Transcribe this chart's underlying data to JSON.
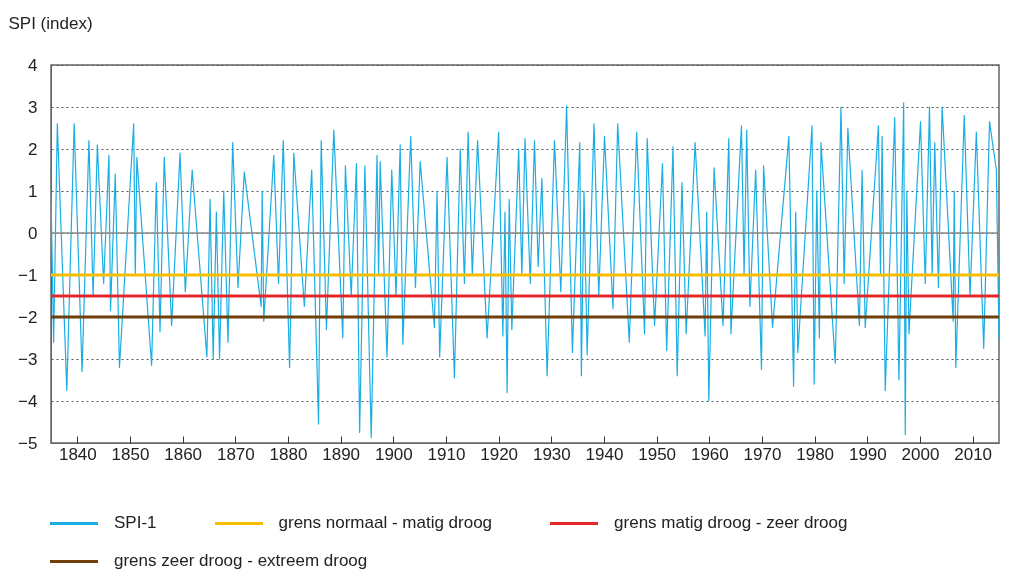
{
  "chart_data": {
    "type": "line",
    "ylabel": "SPI (index)",
    "xlim": [
      1835,
      2015
    ],
    "ylim": [
      -5,
      4
    ],
    "xticks": [
      1840,
      1850,
      1860,
      1870,
      1880,
      1890,
      1900,
      1910,
      1920,
      1930,
      1940,
      1950,
      1960,
      1970,
      1980,
      1990,
      2000,
      2010
    ],
    "yticks": [
      -5,
      -4,
      -3,
      -2,
      -1,
      0,
      1,
      2,
      3,
      4
    ],
    "grid": "y",
    "legend": "bottom",
    "marker": "none",
    "series": [
      {
        "name": "SPI-1",
        "color": "#1aaee5",
        "x": [
          1835.0,
          1835.5,
          1836.2,
          1838.0,
          1839.4,
          1840.9,
          1842.2,
          1843.0,
          1843.8,
          1845.0,
          1846.0,
          1846.3,
          1847.2,
          1848.0,
          1850.7,
          1851.0,
          1851.3,
          1854.1,
          1855.0,
          1855.7,
          1856.5,
          1857.9,
          1859.5,
          1860.5,
          1861.8,
          1864.6,
          1865.2,
          1865.8,
          1866.4,
          1867.0,
          1867.8,
          1868.6,
          1869.5,
          1870.5,
          1871.7,
          1874.9,
          1875.1,
          1875.4,
          1877.3,
          1878.2,
          1879.1,
          1880.3,
          1881.1,
          1883.1,
          1884.5,
          1885.8,
          1886.3,
          1887.3,
          1888.7,
          1890.4,
          1890.9,
          1892.0,
          1893.0,
          1893.6,
          1894.6,
          1895.8,
          1896.9,
          1897.2,
          1897.5,
          1898.8,
          1899.7,
          1900.5,
          1901.3,
          1901.8,
          1903.3,
          1904.2,
          1905.1,
          1907.8,
          1908.3,
          1908.8,
          1910.2,
          1911.6,
          1912.7,
          1913.5,
          1914.2,
          1915.0,
          1916.0,
          1917.8,
          1920.0,
          1920.8,
          1921.2,
          1921.6,
          1922.0,
          1922.5,
          1923.8,
          1924.4,
          1925.0,
          1926.0,
          1926.8,
          1927.5,
          1928.2,
          1929.2,
          1930.6,
          1931.8,
          1932.9,
          1934.0,
          1935.4,
          1935.7,
          1936.2,
          1936.8,
          1938.1,
          1939.0,
          1940.1,
          1941.7,
          1942.6,
          1944.8,
          1946.2,
          1947.7,
          1948.2,
          1949.6,
          1951.1,
          1951.9,
          1953.1,
          1953.9,
          1954.8,
          1955.6,
          1957.3,
          1959.2,
          1959.5,
          1959.9,
          1960.9,
          1962.6,
          1963.7,
          1964.1,
          1966.1,
          1966.6,
          1967.1,
          1967.7,
          1968.8,
          1969.9,
          1970.3,
          1972.0,
          1975.1,
          1976.0,
          1976.4,
          1976.8,
          1979.5,
          1979.9,
          1980.4,
          1980.9,
          1981.2,
          1983.9,
          1985.0,
          1985.6,
          1986.3,
          1988.5,
          1989.0,
          1989.6,
          1992.1,
          1992.5,
          1992.8,
          1993.4,
          1995.2,
          1996.0,
          1996.9,
          1997.2,
          1997.5,
          1997.9,
          2000.1,
          2001.0,
          2001.8,
          2002.3,
          2002.8,
          2003.5,
          2004.2,
          2006.3,
          2006.5,
          2006.8,
          2008.4,
          2009.5,
          2010.7,
          2012.1,
          2013.2,
          2014.5,
          2015.0
        ],
        "values": [
          0.9,
          -2.6,
          2.6,
          -3.75,
          2.6,
          -3.3,
          2.2,
          -1.5,
          2.1,
          -1.2,
          1.85,
          -1.85,
          1.4,
          -3.2,
          2.6,
          -1.0,
          1.8,
          -3.15,
          1.2,
          -2.35,
          1.8,
          -2.2,
          1.9,
          -1.4,
          1.5,
          -2.95,
          0.8,
          -3.0,
          0.5,
          -3.0,
          1.0,
          -2.6,
          2.15,
          -1.3,
          1.45,
          -1.75,
          1.0,
          -2.1,
          1.85,
          -1.2,
          2.2,
          -3.2,
          1.9,
          -1.75,
          1.5,
          -4.55,
          2.2,
          -2.3,
          2.45,
          -2.5,
          1.6,
          -1.5,
          1.65,
          -4.75,
          1.6,
          -4.87,
          1.85,
          -1.0,
          1.7,
          -2.95,
          1.5,
          -1.5,
          2.1,
          -2.65,
          2.3,
          -1.3,
          1.7,
          -2.25,
          1.0,
          -2.95,
          1.8,
          -3.45,
          2.0,
          -1.2,
          2.4,
          -1.0,
          2.2,
          -2.5,
          2.4,
          -2.45,
          0.5,
          -3.8,
          0.8,
          -2.3,
          2.0,
          -1.0,
          2.25,
          -1.2,
          2.2,
          -0.8,
          1.3,
          -3.4,
          2.2,
          -1.4,
          3.03,
          -2.85,
          2.15,
          -3.4,
          1.0,
          -2.9,
          2.6,
          -1.5,
          2.3,
          -1.8,
          2.6,
          -2.6,
          2.4,
          -2.4,
          2.25,
          -2.2,
          1.65,
          -2.8,
          2.05,
          -3.4,
          1.2,
          -2.4,
          2.15,
          -2.45,
          0.5,
          -4.0,
          1.55,
          -2.2,
          2.25,
          -2.4,
          2.55,
          -1.0,
          2.45,
          -1.75,
          1.5,
          -3.25,
          1.6,
          -2.25,
          2.3,
          -3.65,
          0.5,
          -2.85,
          2.55,
          -3.6,
          1.0,
          -2.5,
          2.15,
          -3.1,
          3.0,
          -1.2,
          2.5,
          -2.2,
          1.5,
          -2.25,
          2.55,
          -1.0,
          2.3,
          -3.75,
          2.75,
          -3.5,
          3.1,
          -4.8,
          1.0,
          -2.4,
          2.65,
          -1.2,
          3.0,
          -1.0,
          2.15,
          -1.3,
          3.0,
          -2.1,
          1.0,
          -3.2,
          2.8,
          -1.5,
          2.4,
          -2.75,
          2.65,
          1.5,
          -2.55
        ]
      }
    ],
    "ref_lines": [
      {
        "axis": "y",
        "value": 0,
        "color": "#8a8a8a"
      },
      {
        "axis": "y",
        "value": -1,
        "label": "grens normaal - matig droog",
        "color": "#f8bc00"
      },
      {
        "axis": "y",
        "value": -1.5,
        "label": "grens matig droog - zeer droog",
        "color": "#e3262a"
      },
      {
        "axis": "y",
        "value": -2,
        "label": "grens zeer droog - extreem droog",
        "color": "#6e3f0b"
      }
    ]
  }
}
